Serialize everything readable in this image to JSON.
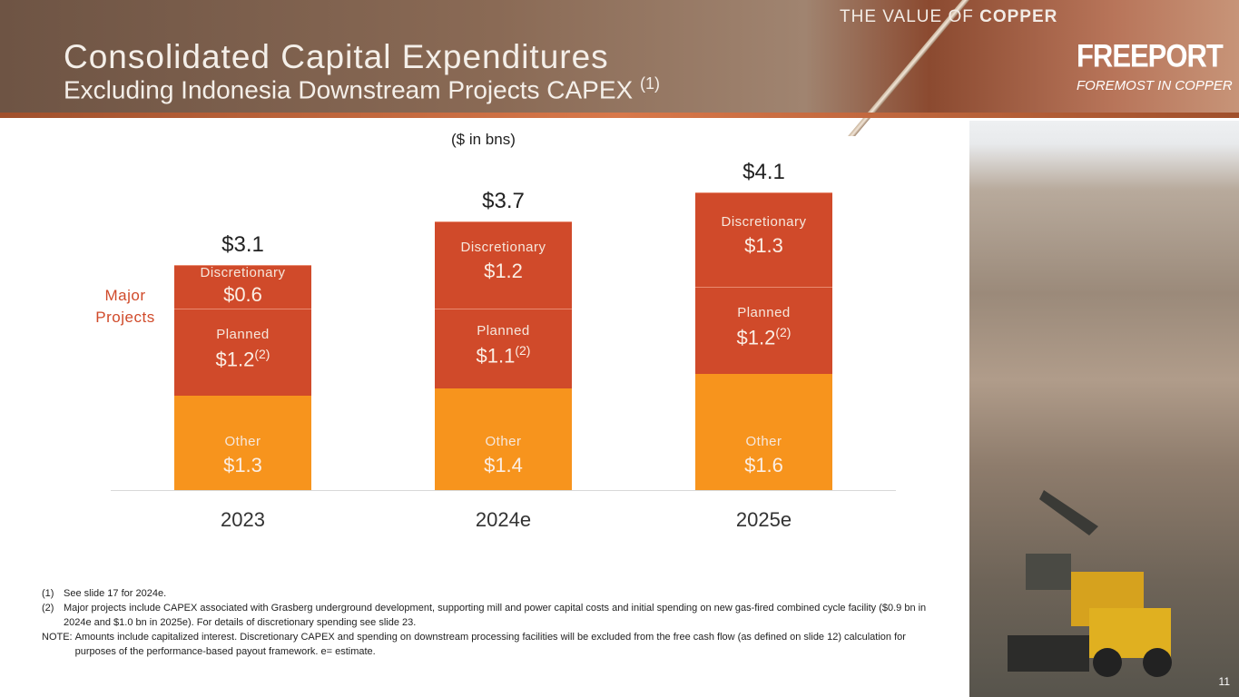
{
  "header": {
    "title": "Consolidated Capital Expenditures",
    "subtitle": "Excluding Indonesia Downstream Projects CAPEX",
    "subtitle_footnote": "(1)",
    "tagline_prefix": "THE VALUE OF ",
    "tagline_bold": "COPPER",
    "brand": "FREEPORT",
    "brand_tagline": "FOREMOST IN COPPER"
  },
  "colors": {
    "other": "#F7941D",
    "major_projects": "#D04A2A",
    "header": "#7A5C4A"
  },
  "chart_data": {
    "type": "bar",
    "stacked": true,
    "units_label": "($ in bns)",
    "categories": [
      "2023",
      "2024e",
      "2025e"
    ],
    "series": [
      {
        "name": "Other",
        "values": [
          1.3,
          1.4,
          1.6
        ],
        "value_labels": [
          "$1.3",
          "$1.4",
          "$1.6"
        ],
        "color": "#F7941D"
      },
      {
        "name": "Planned",
        "values": [
          1.2,
          1.1,
          1.2
        ],
        "value_labels": [
          "$1.2",
          "$1.1",
          "$1.2"
        ],
        "footnote": "(2)",
        "color": "#D04A2A"
      },
      {
        "name": "Discretionary",
        "values": [
          0.6,
          1.2,
          1.3
        ],
        "value_labels": [
          "$0.6",
          "$1.2",
          "$1.3"
        ],
        "color": "#D04A2A"
      }
    ],
    "totals": [
      "$3.1",
      "$3.7",
      "$4.1"
    ],
    "group_label": "Major Projects",
    "ylim": [
      0,
      4.1
    ],
    "grid": false,
    "legend": "none"
  },
  "footnotes": [
    {
      "key": "(1)",
      "text": "See slide 17 for 2024e."
    },
    {
      "key": "(2)",
      "text": "Major projects include CAPEX associated with Grasberg underground development, supporting mill and power capital costs and initial spending on new gas-fired combined cycle facility ($0.9 bn in 2024e and $1.0 bn in 2025e). For details of discretionary spending see slide 23."
    },
    {
      "key": "NOTE:",
      "text": "Amounts include capitalized interest. Discretionary CAPEX and spending on downstream processing facilities will be excluded from the free cash flow (as defined on slide 12) calculation for purposes of the performance-based payout framework. e= estimate."
    }
  ],
  "page_number": "11"
}
